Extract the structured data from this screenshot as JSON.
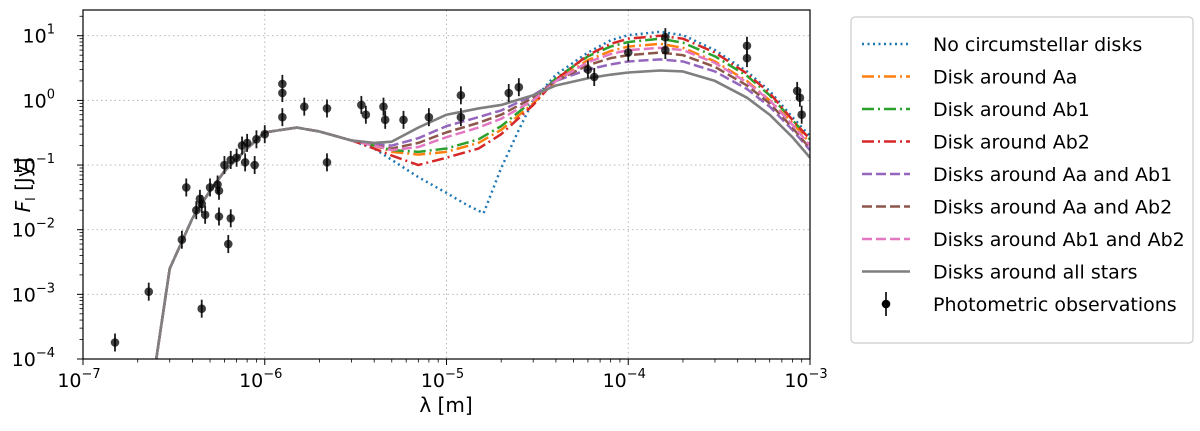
{
  "chart_data": {
    "type": "line",
    "xscale": "log",
    "yscale": "log",
    "xlim": [
      1e-07,
      0.001
    ],
    "ylim": [
      0.0001,
      25
    ],
    "xlabel": "λ [m]",
    "ylabel": "F_l [Jy]",
    "ylabel_main": "F",
    "ylabel_sub": "l",
    "ylabel_unit": " [Jy]",
    "grid": true,
    "legend_position": "outside-right",
    "x_ticks": [
      {
        "value": 1e-07,
        "base": "10",
        "exp": "−7"
      },
      {
        "value": 1e-06,
        "base": "10",
        "exp": "−6"
      },
      {
        "value": 1e-05,
        "base": "10",
        "exp": "−5"
      },
      {
        "value": 0.0001,
        "base": "10",
        "exp": "−4"
      },
      {
        "value": 0.001,
        "base": "10",
        "exp": "−3"
      }
    ],
    "y_ticks": [
      {
        "value": 0.0001,
        "base": "10",
        "exp": "−4"
      },
      {
        "value": 0.001,
        "base": "10",
        "exp": "−3"
      },
      {
        "value": 0.01,
        "base": "10",
        "exp": "−2"
      },
      {
        "value": 0.1,
        "base": "10",
        "exp": "−1"
      },
      {
        "value": 1,
        "base": "10",
        "exp": "0"
      },
      {
        "value": 10,
        "base": "10",
        "exp": "1"
      }
    ],
    "series": [
      {
        "name": "No circumstellar disks",
        "color": "#1f77b4",
        "style": "dotted",
        "points": [
          [
            2.5e-07,
            8e-05
          ],
          [
            3e-07,
            0.0025
          ],
          [
            4e-07,
            0.015
          ],
          [
            5e-07,
            0.04
          ],
          [
            6e-07,
            0.08
          ],
          [
            8e-07,
            0.18
          ],
          [
            1e-06,
            0.32
          ],
          [
            1.5e-06,
            0.38
          ],
          [
            2e-06,
            0.33
          ],
          [
            3e-06,
            0.24
          ],
          [
            4e-06,
            0.18
          ],
          [
            5e-06,
            0.12
          ],
          [
            7e-06,
            0.065
          ],
          [
            1e-05,
            0.037
          ],
          [
            1.3e-05,
            0.024
          ],
          [
            1.6e-05,
            0.018
          ],
          [
            2e-05,
            0.09
          ],
          [
            2.5e-05,
            0.35
          ],
          [
            3e-05,
            1.0
          ],
          [
            4e-05,
            2.5
          ],
          [
            6e-05,
            5.5
          ],
          [
            8e-05,
            8.5
          ],
          [
            0.0001,
            10.2
          ],
          [
            0.00015,
            11.5
          ],
          [
            0.0002,
            10.2
          ],
          [
            0.0003,
            6.0
          ],
          [
            0.00045,
            2.8
          ],
          [
            0.0006,
            1.4
          ],
          [
            0.0008,
            0.55
          ],
          [
            0.001,
            0.28
          ]
        ]
      },
      {
        "name": "Disk around Aa",
        "color": "#ff7f0e",
        "style": "dashdot",
        "points": [
          [
            2.5e-07,
            8e-05
          ],
          [
            3e-07,
            0.0025
          ],
          [
            4e-07,
            0.015
          ],
          [
            5e-07,
            0.04
          ],
          [
            6e-07,
            0.08
          ],
          [
            8e-07,
            0.18
          ],
          [
            1e-06,
            0.32
          ],
          [
            1.5e-06,
            0.38
          ],
          [
            2e-06,
            0.33
          ],
          [
            3e-06,
            0.24
          ],
          [
            4e-06,
            0.2
          ],
          [
            5e-06,
            0.16
          ],
          [
            7e-06,
            0.145
          ],
          [
            1e-05,
            0.16
          ],
          [
            1.5e-05,
            0.22
          ],
          [
            2e-05,
            0.35
          ],
          [
            3e-05,
            0.9
          ],
          [
            4e-05,
            2.0
          ],
          [
            6e-05,
            4.2
          ],
          [
            8e-05,
            5.8
          ],
          [
            0.0001,
            6.8
          ],
          [
            0.00015,
            7.5
          ],
          [
            0.0002,
            6.5
          ],
          [
            0.0003,
            4.0
          ],
          [
            0.00045,
            2.0
          ],
          [
            0.0006,
            1.0
          ],
          [
            0.0008,
            0.45
          ],
          [
            0.001,
            0.22
          ]
        ]
      },
      {
        "name": "Disk around Ab1",
        "color": "#2ca02c",
        "style": "dashdot",
        "points": [
          [
            2.5e-07,
            8e-05
          ],
          [
            3e-07,
            0.0025
          ],
          [
            4e-07,
            0.015
          ],
          [
            5e-07,
            0.04
          ],
          [
            6e-07,
            0.08
          ],
          [
            8e-07,
            0.18
          ],
          [
            1e-06,
            0.32
          ],
          [
            1.5e-06,
            0.38
          ],
          [
            2e-06,
            0.33
          ],
          [
            3e-06,
            0.24
          ],
          [
            4e-06,
            0.2
          ],
          [
            5e-06,
            0.17
          ],
          [
            7e-06,
            0.16
          ],
          [
            1e-05,
            0.18
          ],
          [
            1.5e-05,
            0.25
          ],
          [
            2e-05,
            0.4
          ],
          [
            3e-05,
            1.0
          ],
          [
            4e-05,
            2.2
          ],
          [
            6e-05,
            4.8
          ],
          [
            8e-05,
            6.8
          ],
          [
            0.0001,
            8.0
          ],
          [
            0.00015,
            9.0
          ],
          [
            0.0002,
            7.8
          ],
          [
            0.0003,
            4.8
          ],
          [
            0.00045,
            2.4
          ],
          [
            0.0006,
            1.2
          ],
          [
            0.0008,
            0.5
          ],
          [
            0.001,
            0.25
          ]
        ]
      },
      {
        "name": "Disk around Ab2",
        "color": "#d62728",
        "style": "dashdot",
        "points": [
          [
            2.5e-07,
            8e-05
          ],
          [
            3e-07,
            0.0025
          ],
          [
            4e-07,
            0.015
          ],
          [
            5e-07,
            0.04
          ],
          [
            6e-07,
            0.08
          ],
          [
            8e-07,
            0.18
          ],
          [
            1e-06,
            0.32
          ],
          [
            1.5e-06,
            0.38
          ],
          [
            2e-06,
            0.33
          ],
          [
            3e-06,
            0.24
          ],
          [
            4e-06,
            0.18
          ],
          [
            5e-06,
            0.14
          ],
          [
            7e-06,
            0.1
          ],
          [
            1e-05,
            0.13
          ],
          [
            1.5e-05,
            0.18
          ],
          [
            2e-05,
            0.3
          ],
          [
            3e-05,
            0.85
          ],
          [
            4e-05,
            2.1
          ],
          [
            6e-05,
            5.0
          ],
          [
            8e-05,
            7.5
          ],
          [
            0.0001,
            9.0
          ],
          [
            0.00015,
            10.0
          ],
          [
            0.0002,
            9.0
          ],
          [
            0.0003,
            5.5
          ],
          [
            0.00045,
            2.6
          ],
          [
            0.0006,
            1.3
          ],
          [
            0.0008,
            0.5
          ],
          [
            0.001,
            0.25
          ]
        ]
      },
      {
        "name": "Disks around Aa and Ab1",
        "color": "#9467bd",
        "style": "dashed",
        "points": [
          [
            2.5e-07,
            8e-05
          ],
          [
            3e-07,
            0.0025
          ],
          [
            4e-07,
            0.015
          ],
          [
            5e-07,
            0.04
          ],
          [
            6e-07,
            0.08
          ],
          [
            8e-07,
            0.18
          ],
          [
            1e-06,
            0.32
          ],
          [
            1.5e-06,
            0.38
          ],
          [
            2e-06,
            0.33
          ],
          [
            3e-06,
            0.24
          ],
          [
            4e-06,
            0.21
          ],
          [
            5e-06,
            0.2
          ],
          [
            7e-06,
            0.26
          ],
          [
            1e-05,
            0.4
          ],
          [
            1.5e-05,
            0.55
          ],
          [
            2e-05,
            0.7
          ],
          [
            3e-05,
            1.2
          ],
          [
            4e-05,
            2.0
          ],
          [
            6e-05,
            3.0
          ],
          [
            8e-05,
            3.6
          ],
          [
            0.0001,
            4.0
          ],
          [
            0.00015,
            4.3
          ],
          [
            0.0002,
            4.0
          ],
          [
            0.0003,
            2.8
          ],
          [
            0.00045,
            1.5
          ],
          [
            0.0006,
            0.8
          ],
          [
            0.0008,
            0.35
          ],
          [
            0.001,
            0.17
          ]
        ]
      },
      {
        "name": "Disks around Aa and Ab2",
        "color": "#8c564b",
        "style": "dashed",
        "points": [
          [
            2.5e-07,
            8e-05
          ],
          [
            3e-07,
            0.0025
          ],
          [
            4e-07,
            0.015
          ],
          [
            5e-07,
            0.04
          ],
          [
            6e-07,
            0.08
          ],
          [
            8e-07,
            0.18
          ],
          [
            1e-06,
            0.32
          ],
          [
            1.5e-06,
            0.38
          ],
          [
            2e-06,
            0.33
          ],
          [
            3e-06,
            0.24
          ],
          [
            4e-06,
            0.2
          ],
          [
            5e-06,
            0.18
          ],
          [
            7e-06,
            0.22
          ],
          [
            1e-05,
            0.32
          ],
          [
            1.5e-05,
            0.45
          ],
          [
            2e-05,
            0.6
          ],
          [
            3e-05,
            1.1
          ],
          [
            4e-05,
            2.0
          ],
          [
            6e-05,
            3.5
          ],
          [
            8e-05,
            4.5
          ],
          [
            0.0001,
            5.0
          ],
          [
            0.00015,
            5.5
          ],
          [
            0.0002,
            5.0
          ],
          [
            0.0003,
            3.3
          ],
          [
            0.00045,
            1.7
          ],
          [
            0.0006,
            0.9
          ],
          [
            0.0008,
            0.38
          ],
          [
            0.001,
            0.18
          ]
        ]
      },
      {
        "name": "Disks around Ab1 and Ab2",
        "color": "#e377c2",
        "style": "dashed",
        "points": [
          [
            2.5e-07,
            8e-05
          ],
          [
            3e-07,
            0.0025
          ],
          [
            4e-07,
            0.015
          ],
          [
            5e-07,
            0.04
          ],
          [
            6e-07,
            0.08
          ],
          [
            8e-07,
            0.18
          ],
          [
            1e-06,
            0.32
          ],
          [
            1.5e-06,
            0.38
          ],
          [
            2e-06,
            0.33
          ],
          [
            3e-06,
            0.24
          ],
          [
            4e-06,
            0.2
          ],
          [
            5e-06,
            0.17
          ],
          [
            7e-06,
            0.19
          ],
          [
            1e-05,
            0.27
          ],
          [
            1.5e-05,
            0.38
          ],
          [
            2e-05,
            0.52
          ],
          [
            3e-05,
            1.0
          ],
          [
            4e-05,
            2.0
          ],
          [
            6e-05,
            3.9
          ],
          [
            8e-05,
            5.2
          ],
          [
            0.0001,
            6.0
          ],
          [
            0.00015,
            6.5
          ],
          [
            0.0002,
            6.0
          ],
          [
            0.0003,
            3.8
          ],
          [
            0.00045,
            1.9
          ],
          [
            0.0006,
            1.0
          ],
          [
            0.0008,
            0.42
          ],
          [
            0.001,
            0.2
          ]
        ]
      },
      {
        "name": "Disks around all stars",
        "color": "#7f7f7f",
        "style": "solid",
        "points": [
          [
            2.5e-07,
            8e-05
          ],
          [
            3e-07,
            0.0025
          ],
          [
            4e-07,
            0.015
          ],
          [
            5e-07,
            0.04
          ],
          [
            6e-07,
            0.08
          ],
          [
            8e-07,
            0.18
          ],
          [
            1e-06,
            0.32
          ],
          [
            1.5e-06,
            0.38
          ],
          [
            2e-06,
            0.33
          ],
          [
            3e-06,
            0.24
          ],
          [
            4e-06,
            0.22
          ],
          [
            5e-06,
            0.23
          ],
          [
            7e-06,
            0.38
          ],
          [
            1e-05,
            0.6
          ],
          [
            1.5e-05,
            0.75
          ],
          [
            2e-05,
            0.85
          ],
          [
            3e-05,
            1.2
          ],
          [
            4e-05,
            1.7
          ],
          [
            6e-05,
            2.2
          ],
          [
            8e-05,
            2.5
          ],
          [
            0.0001,
            2.7
          ],
          [
            0.00015,
            2.9
          ],
          [
            0.0002,
            2.8
          ],
          [
            0.0003,
            2.0
          ],
          [
            0.00045,
            1.1
          ],
          [
            0.0006,
            0.6
          ],
          [
            0.0008,
            0.27
          ],
          [
            0.001,
            0.13
          ]
        ]
      }
    ],
    "observations": {
      "name": "Photometric observations",
      "color": "#000000",
      "points": [
        [
          1.5e-07,
          0.00018
        ],
        [
          2.3e-07,
          0.0011
        ],
        [
          3.5e-07,
          0.007
        ],
        [
          3.7e-07,
          0.045
        ],
        [
          4.2e-07,
          0.02
        ],
        [
          4.4e-07,
          0.03
        ],
        [
          4.5e-07,
          0.025
        ],
        [
          4.5e-07,
          0.0006
        ],
        [
          4.7e-07,
          0.017
        ],
        [
          5e-07,
          0.045
        ],
        [
          5.5e-07,
          0.05
        ],
        [
          5.6e-07,
          0.04
        ],
        [
          5.6e-07,
          0.016
        ],
        [
          6e-07,
          0.1
        ],
        [
          6.3e-07,
          0.006
        ],
        [
          6.5e-07,
          0.12
        ],
        [
          6.5e-07,
          0.015
        ],
        [
          7e-07,
          0.13
        ],
        [
          7.5e-07,
          0.2
        ],
        [
          7.8e-07,
          0.11
        ],
        [
          8e-07,
          0.22
        ],
        [
          8.8e-07,
          0.1
        ],
        [
          9e-07,
          0.25
        ],
        [
          1e-06,
          0.3
        ],
        [
          1.25e-06,
          1.8
        ],
        [
          1.25e-06,
          1.3
        ],
        [
          1.25e-06,
          0.55
        ],
        [
          1.65e-06,
          0.8
        ],
        [
          2.2e-06,
          0.75
        ],
        [
          2.2e-06,
          0.11
        ],
        [
          3.4e-06,
          0.85
        ],
        [
          3.6e-06,
          0.6
        ],
        [
          4.5e-06,
          0.8
        ],
        [
          4.6e-06,
          0.5
        ],
        [
          5.8e-06,
          0.5
        ],
        [
          8e-06,
          0.55
        ],
        [
          1.2e-05,
          1.2
        ],
        [
          1.2e-05,
          0.55
        ],
        [
          2.2e-05,
          1.3
        ],
        [
          2.5e-05,
          1.6
        ],
        [
          6e-05,
          3.0
        ],
        [
          6.5e-05,
          2.3
        ],
        [
          0.0001,
          5.5
        ],
        [
          0.00016,
          9.5
        ],
        [
          0.00016,
          6.0
        ],
        [
          0.00045,
          7.0
        ],
        [
          0.00045,
          4.5
        ],
        [
          0.00085,
          1.4
        ],
        [
          0.00088,
          1.1
        ],
        [
          0.0009,
          0.6
        ]
      ]
    }
  }
}
